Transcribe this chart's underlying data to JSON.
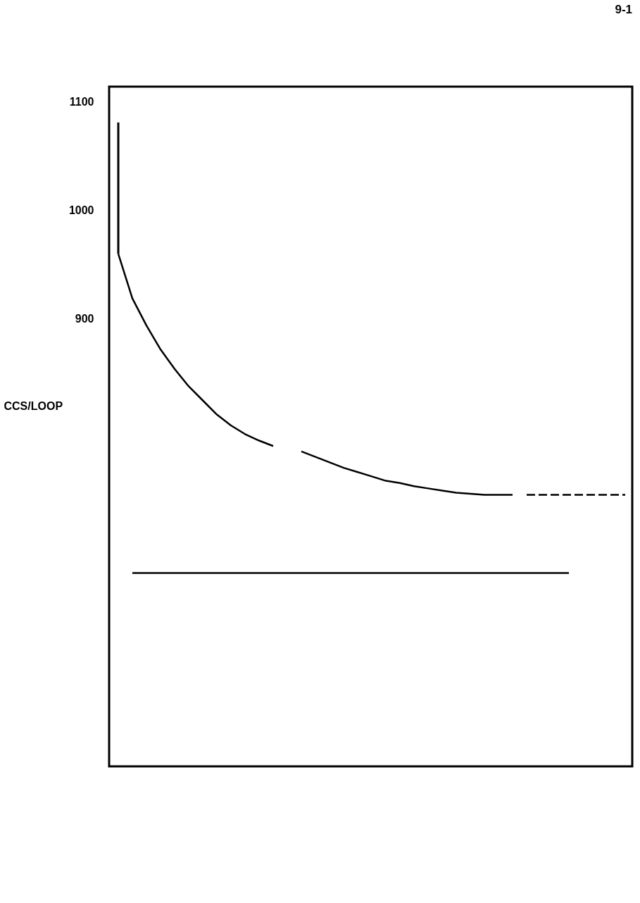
{
  "chart_data": {
    "type": "line",
    "ylabel": "CCS/LOOP",
    "annotations": [
      "9-1"
    ],
    "categories": [
      null,
      null,
      null,
      null,
      null,
      null,
      null,
      null,
      null,
      null,
      null,
      null,
      null,
      null,
      null,
      null,
      null,
      null,
      null,
      null,
      null,
      null,
      null,
      null,
      null,
      null,
      null,
      null,
      null,
      null,
      null,
      null,
      null,
      null,
      null,
      null,
      null
    ],
    "series": [
      {
        "color": "#000000",
        "line_style": "solid",
        "values": [
          960,
          919,
          894,
          872,
          854,
          838,
          825,
          812,
          802,
          794,
          788,
          783,
          null,
          778,
          773,
          768,
          763,
          759,
          755,
          751,
          749,
          746,
          744,
          742,
          740,
          739,
          738,
          738,
          738,
          null,
          null,
          null,
          null,
          null,
          null,
          null,
          null
        ],
        "errors": [
          [
            960,
            1081
          ],
          null,
          null,
          null,
          null,
          null,
          null,
          null,
          null,
          null,
          null,
          null,
          null,
          null,
          null,
          null,
          null,
          null,
          null,
          null,
          null,
          null,
          null,
          null,
          null,
          null,
          null,
          null,
          null,
          null,
          null,
          null,
          null,
          null,
          null,
          null,
          null
        ]
      },
      {
        "color": "#000000",
        "line_style": "dashed",
        "values": [
          null,
          null,
          null,
          null,
          null,
          null,
          null,
          null,
          null,
          null,
          null,
          null,
          null,
          null,
          null,
          null,
          null,
          null,
          null,
          null,
          null,
          null,
          null,
          null,
          null,
          null,
          null,
          null,
          null,
          738,
          738,
          738,
          738,
          738,
          738,
          738,
          738
        ]
      },
      {
        "color": "#000000",
        "line_style": "solid",
        "values": [
          null,
          666,
          666,
          666,
          666,
          666,
          666,
          666,
          666,
          666,
          666,
          666,
          666,
          666,
          666,
          666,
          666,
          666,
          666,
          666,
          666,
          666,
          666,
          666,
          666,
          666,
          666,
          666,
          666,
          666,
          666,
          666,
          666,
          null,
          null,
          null,
          null
        ]
      }
    ],
    "ylim": [
      488,
      1114
    ],
    "yticks": [
      900,
      1000,
      1100
    ],
    "grid": false,
    "tick_labels": "y",
    "marker": "none"
  }
}
